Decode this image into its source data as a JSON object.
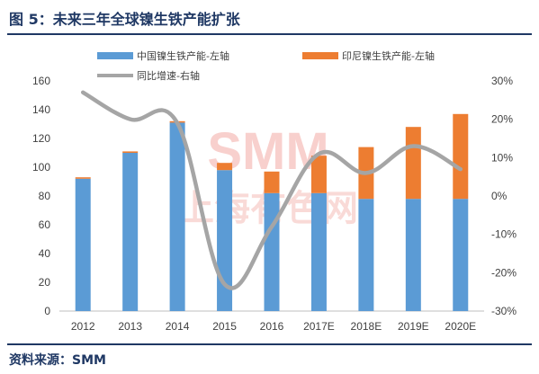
{
  "figure": {
    "title": "图 5：未来三年全球镍生铁产能扩张",
    "source": "资料来源：SMM"
  },
  "watermark": {
    "brand": "SMM",
    "cn": "上海有色网"
  },
  "colors": {
    "china": "#5b9bd5",
    "indonesia": "#ed7d31",
    "growth": "#a5a5a5",
    "title": "#1f3864"
  },
  "chart_data": {
    "type": "bar",
    "stacked": true,
    "categories": [
      "2012",
      "2013",
      "2014",
      "2015",
      "2016",
      "2017E",
      "2018E",
      "2019E",
      "2020E"
    ],
    "series": [
      {
        "name": "中国镍生铁产能-左轴",
        "axis": "left",
        "type": "bar",
        "values": [
          92,
          110,
          131,
          98,
          82,
          82,
          78,
          78,
          78
        ]
      },
      {
        "name": "印尼镍生铁产能-左轴",
        "axis": "left",
        "type": "bar",
        "values": [
          1,
          1,
          1,
          5,
          15,
          26,
          36,
          50,
          59
        ]
      },
      {
        "name": "同比增速-右轴",
        "axis": "right",
        "type": "line",
        "values": [
          27,
          20,
          19,
          -23,
          -8,
          11,
          6,
          13,
          7
        ]
      }
    ],
    "ylim_left": [
      0,
      160
    ],
    "yticks_left": [
      "0",
      "20",
      "40",
      "60",
      "80",
      "100",
      "120",
      "140",
      "160"
    ],
    "ylim_right": [
      -30,
      30
    ],
    "yticks_right": [
      "-30%",
      "-20%",
      "-10%",
      "0%",
      "10%",
      "20%",
      "30%"
    ],
    "legend_position": "top",
    "grid": false
  }
}
